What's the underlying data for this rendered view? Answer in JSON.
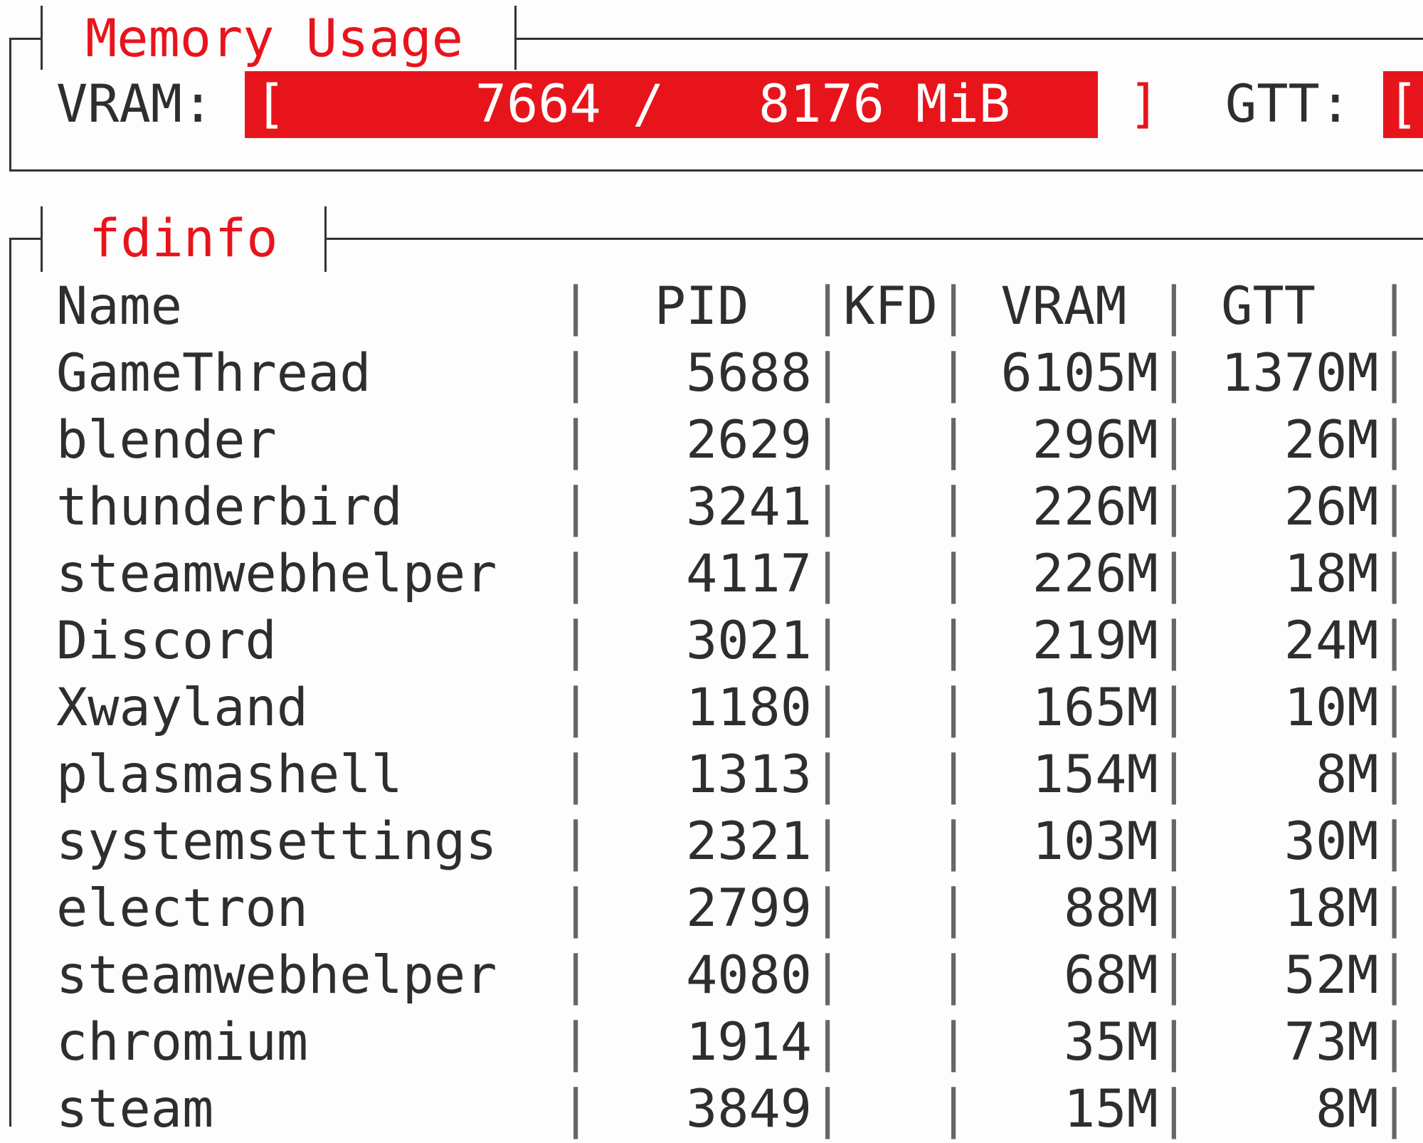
{
  "memory": {
    "title": "Memory Usage",
    "vram_label": "VRAM:",
    "vram_bar_text": "[      7664 /   8176 MiB",
    "vram_bar_end": "]",
    "vram_used_mib": 7664,
    "vram_total_mib": 8176,
    "gtt_label": "GTT:",
    "gtt_bar_text": "[",
    "bar_color": "#e8141c"
  },
  "fdinfo": {
    "title": "fdinfo",
    "columns": [
      "Name",
      "PID",
      "KFD",
      "VRAM",
      "GTT"
    ],
    "rows": [
      {
        "name": "GameThread",
        "pid": "5688",
        "kfd": "",
        "vram": "6105M",
        "gtt": "1370M"
      },
      {
        "name": "blender",
        "pid": "2629",
        "kfd": "",
        "vram": "296M",
        "gtt": "26M"
      },
      {
        "name": "thunderbird",
        "pid": "3241",
        "kfd": "",
        "vram": "226M",
        "gtt": "26M"
      },
      {
        "name": "steamwebhelper",
        "pid": "4117",
        "kfd": "",
        "vram": "226M",
        "gtt": "18M"
      },
      {
        "name": "Discord",
        "pid": "3021",
        "kfd": "",
        "vram": "219M",
        "gtt": "24M"
      },
      {
        "name": "Xwayland",
        "pid": "1180",
        "kfd": "",
        "vram": "165M",
        "gtt": "10M"
      },
      {
        "name": "plasmashell",
        "pid": "1313",
        "kfd": "",
        "vram": "154M",
        "gtt": "8M"
      },
      {
        "name": "systemsettings",
        "pid": "2321",
        "kfd": "",
        "vram": "103M",
        "gtt": "30M"
      },
      {
        "name": "electron",
        "pid": "2799",
        "kfd": "",
        "vram": "88M",
        "gtt": "18M"
      },
      {
        "name": "steamwebhelper",
        "pid": "4080",
        "kfd": "",
        "vram": "68M",
        "gtt": "52M"
      },
      {
        "name": "chromium",
        "pid": "1914",
        "kfd": "",
        "vram": "35M",
        "gtt": "73M"
      },
      {
        "name": "steam",
        "pid": "3849",
        "kfd": "",
        "vram": "15M",
        "gtt": "8M"
      }
    ]
  }
}
